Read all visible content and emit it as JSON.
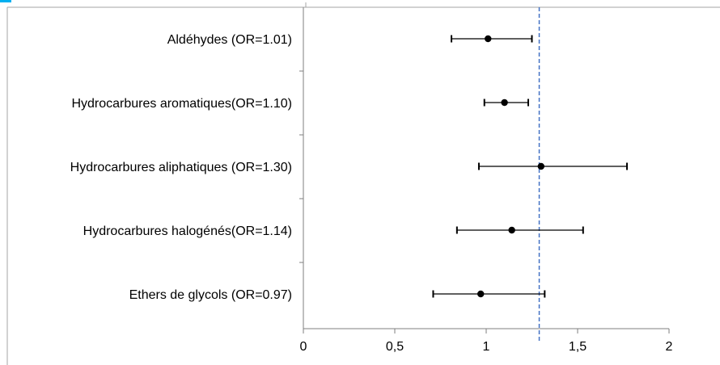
{
  "chart_data": {
    "type": "scatter",
    "subtype": "forest-plot",
    "categories": [
      "Aldéhydes (OR=1.01)",
      "Hydrocarbures aromatiques(OR=1.10)",
      "Hydrocarbures aliphatiques  (OR=1.30)",
      "Hydrocarbures halogénés(OR=1.14)",
      "Ethers de glycols (OR=0.97)"
    ],
    "series": [
      {
        "estimate": [
          1.01,
          1.1,
          1.3,
          1.14,
          0.97
        ],
        "ci_low": [
          0.81,
          0.99,
          0.96,
          0.84,
          0.71
        ],
        "ci_high": [
          1.25,
          1.23,
          1.77,
          1.53,
          1.32
        ]
      }
    ],
    "x_ticks": [
      0,
      0.5,
      1,
      1.5,
      2
    ],
    "x_tick_labels": [
      "0",
      "0,5",
      "1",
      "1,5",
      "2"
    ],
    "xlim": [
      0,
      2
    ],
    "reference_line": {
      "x": 1.29,
      "style": "dashed",
      "color": "#4472c4"
    },
    "grid": false,
    "colors": {
      "point": "#000000",
      "errorbar": "#000000",
      "axis": "#7f7f7f",
      "frame": "#a6a6a6",
      "accent_bar": "#00b0f0"
    }
  }
}
